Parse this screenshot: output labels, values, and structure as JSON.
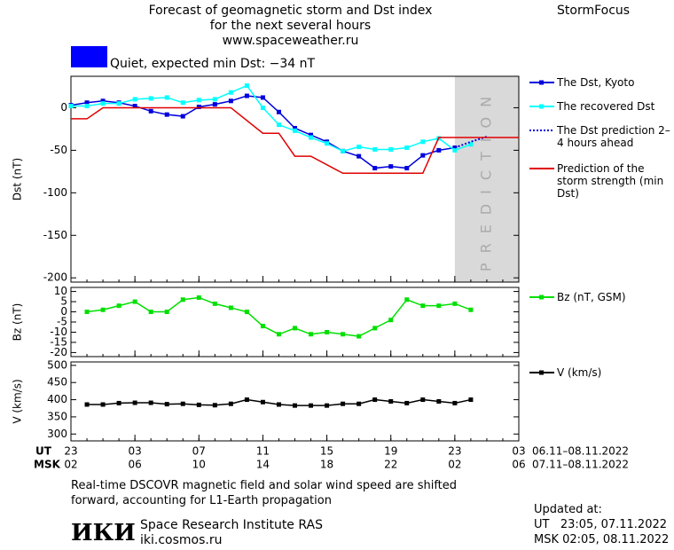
{
  "header": {
    "title_lines": [
      "Forecast of geomagnetic storm and Dst index",
      "for the next several hours",
      "www.spaceweather.ru"
    ],
    "brand": "StormFocus",
    "status": "Quiet, expected min Dst: −34 nT",
    "status_color": "#0000ff"
  },
  "time_axis": {
    "xlim": [
      0,
      28
    ],
    "ut_label": "UT",
    "msk_label": "MSK",
    "ut_ticks": [
      {
        "value": 0,
        "label": "23"
      },
      {
        "value": 4,
        "label": "03"
      },
      {
        "value": 8,
        "label": "07"
      },
      {
        "value": 12,
        "label": "11"
      },
      {
        "value": 16,
        "label": "15"
      },
      {
        "value": 20,
        "label": "19"
      },
      {
        "value": 24,
        "label": "23"
      },
      {
        "value": 28,
        "label": "03"
      }
    ],
    "msk_ticks": [
      {
        "value": 0,
        "label": "02"
      },
      {
        "value": 4,
        "label": "06"
      },
      {
        "value": 8,
        "label": "10"
      },
      {
        "value": 12,
        "label": "14"
      },
      {
        "value": 16,
        "label": "18"
      },
      {
        "value": 20,
        "label": "22"
      },
      {
        "value": 24,
        "label": "02"
      },
      {
        "value": 28,
        "label": "06"
      }
    ],
    "ut_range": "06.11–08.11.2022",
    "msk_range": "07.11–08.11.2022"
  },
  "chart_data": [
    {
      "type": "line",
      "ylabel": "Dst (nT)",
      "ylim": [
        -205,
        37
      ],
      "yticks": [
        0,
        -50,
        -100,
        -150,
        -200
      ],
      "prediction_region": {
        "label": "PREDICTION",
        "from": 24,
        "to": 28
      },
      "series": [
        {
          "name": "The Dst, Kyoto",
          "color": "#0000dd",
          "marker": "square",
          "x": [
            0,
            1,
            2,
            3,
            4,
            5,
            6,
            7,
            8,
            9,
            10,
            11,
            12,
            13,
            14,
            15,
            16,
            17,
            18,
            19,
            20,
            21,
            22,
            23,
            24
          ],
          "values": [
            3,
            6,
            8,
            6,
            2,
            -4,
            -8,
            -10,
            1,
            4,
            8,
            14,
            12,
            -5,
            -24,
            -32,
            -40,
            -51,
            -57,
            -71,
            -69,
            -71,
            -56,
            -50,
            -47
          ]
        },
        {
          "name": "The recovered Dst",
          "color": "#00ffff",
          "marker": "square",
          "x": [
            0,
            1,
            2,
            3,
            4,
            5,
            6,
            7,
            8,
            9,
            10,
            11,
            12,
            13,
            14,
            15,
            16,
            17,
            18,
            19,
            20,
            21,
            22,
            23,
            24,
            25
          ],
          "values": [
            2,
            2,
            5,
            5,
            10,
            11,
            12,
            6,
            9,
            10,
            18,
            26,
            0,
            -20,
            -27,
            -35,
            -42,
            -51,
            -46,
            -49,
            -49,
            -47,
            -40,
            -36,
            -50,
            -43
          ]
        },
        {
          "name": "The Dst prediction 2–4 hours ahead",
          "color": "#0000dd",
          "dash": true,
          "x": [
            24,
            25,
            26
          ],
          "values": [
            -47,
            -40,
            -34
          ]
        },
        {
          "name": "Prediction of the storm strength (min Dst)",
          "color": "#e00000",
          "x": [
            0,
            1,
            2,
            10,
            12,
            13,
            14,
            15,
            17,
            22,
            23,
            28
          ],
          "values": [
            -13,
            -13,
            0,
            0,
            -30,
            -30,
            -57,
            -57,
            -77,
            -77,
            -35,
            -35
          ]
        }
      ]
    },
    {
      "type": "line",
      "ylabel": "Bz (nT)",
      "ylim": [
        -22,
        12
      ],
      "yticks": [
        10,
        5,
        0,
        -5,
        -10,
        -15,
        -20
      ],
      "series": [
        {
          "name": "Bz (nT, GSM)",
          "color": "#00e000",
          "marker": "square",
          "x": [
            1,
            2,
            3,
            4,
            5,
            6,
            7,
            8,
            9,
            10,
            11,
            12,
            13,
            14,
            15,
            16,
            17,
            18,
            19,
            20,
            21,
            22,
            23,
            24,
            25
          ],
          "values": [
            0,
            1,
            3,
            5,
            0,
            0,
            6,
            7,
            4,
            2,
            0,
            -7,
            -11,
            -8,
            -11,
            -10,
            -11,
            -12,
            -8,
            -4,
            6,
            3,
            3,
            4,
            1
          ]
        }
      ]
    },
    {
      "type": "line",
      "ylabel": "V (km/s)",
      "ylim": [
        280,
        510
      ],
      "yticks": [
        500,
        450,
        400,
        350,
        300
      ],
      "series": [
        {
          "name": "V (km/s)",
          "color": "#000000",
          "marker": "square",
          "x": [
            1,
            2,
            3,
            4,
            5,
            6,
            7,
            8,
            9,
            10,
            11,
            12,
            13,
            14,
            15,
            16,
            17,
            18,
            19,
            20,
            21,
            22,
            23,
            24,
            25
          ],
          "values": [
            386,
            386,
            390,
            391,
            391,
            387,
            388,
            385,
            384,
            388,
            400,
            393,
            386,
            383,
            383,
            383,
            388,
            388,
            400,
            395,
            390,
            400,
            395,
            390,
            400
          ]
        }
      ]
    }
  ],
  "footer": {
    "note_lines": [
      "Real-time DSCOVR magnetic field and solar wind speed are shifted",
      "forward, accounting for L1-Earth propagation"
    ],
    "logo": "ИКИ",
    "institute": "Space Research Institute RAS",
    "site": "iki.cosmos.ru",
    "updated_title": "Updated at:",
    "updated_ut": "UT   23:05, 07.11.2022",
    "updated_msk": "MSK 02:05, 08.11.2022"
  }
}
